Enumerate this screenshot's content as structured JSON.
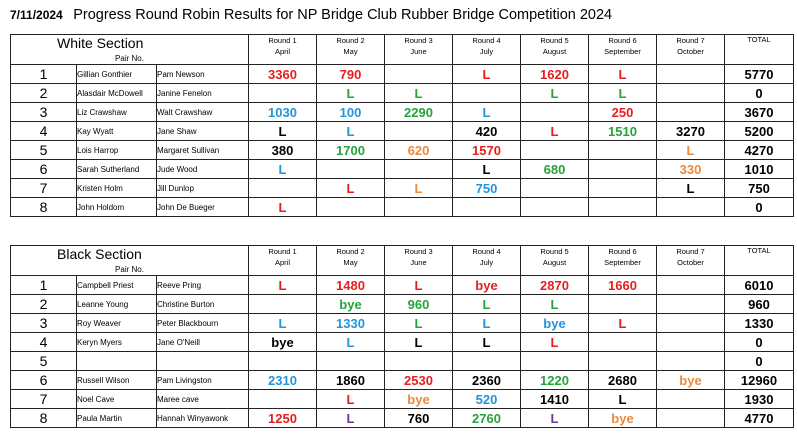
{
  "title": {
    "date": "7/11/2024",
    "text": "Progress Round Robin Results for NP Bridge Club Rubber Bridge Competition 2024"
  },
  "colors": {
    "red": "#e61e1e",
    "green": "#23a43b",
    "blue": "#2196d8",
    "black": "#000000",
    "orange": "#ec8a3a",
    "purple": "#6b3a9a"
  },
  "headers": {
    "pair_no": "Pair No.",
    "total": "TOTAL",
    "rounds": [
      {
        "round": "Round 1",
        "month": "April"
      },
      {
        "round": "Round 2",
        "month": "May"
      },
      {
        "round": "Round 3",
        "month": "June"
      },
      {
        "round": "Round 4",
        "month": "July"
      },
      {
        "round": "Round 5",
        "month": "August"
      },
      {
        "round": "Round 6",
        "month": "September"
      },
      {
        "round": "Round 7",
        "month": "October"
      }
    ]
  },
  "sections": [
    {
      "title": "White Section",
      "rows": [
        {
          "no": "1",
          "p1": "Gillian Gonthier",
          "p2": "Pam Newson",
          "results": [
            {
              "v": "3360",
              "c": "red"
            },
            {
              "v": "790",
              "c": "red"
            },
            {
              "v": "",
              "c": ""
            },
            {
              "v": "L",
              "c": "red"
            },
            {
              "v": "1620",
              "c": "red"
            },
            {
              "v": "L",
              "c": "red"
            },
            {
              "v": "",
              "c": ""
            }
          ],
          "total": "5770"
        },
        {
          "no": "2",
          "p1": "Alasdair McDowell",
          "p2": "Janine Fenelon",
          "results": [
            {
              "v": "",
              "c": ""
            },
            {
              "v": "L",
              "c": "green"
            },
            {
              "v": "L",
              "c": "green"
            },
            {
              "v": "",
              "c": ""
            },
            {
              "v": "L",
              "c": "green"
            },
            {
              "v": "L",
              "c": "green"
            },
            {
              "v": "",
              "c": ""
            }
          ],
          "total": "0"
        },
        {
          "no": "3",
          "p1": "Liz Crawshaw",
          "p2": "Walt Crawshaw",
          "results": [
            {
              "v": "1030",
              "c": "blue"
            },
            {
              "v": "100",
              "c": "blue"
            },
            {
              "v": "2290",
              "c": "green"
            },
            {
              "v": "L",
              "c": "blue"
            },
            {
              "v": "",
              "c": ""
            },
            {
              "v": "250",
              "c": "red"
            },
            {
              "v": "",
              "c": ""
            }
          ],
          "total": "3670"
        },
        {
          "no": "4",
          "p1": "Kay Wyatt",
          "p2": "Jane Shaw",
          "results": [
            {
              "v": "L",
              "c": "black"
            },
            {
              "v": "L",
              "c": "blue"
            },
            {
              "v": "",
              "c": ""
            },
            {
              "v": "420",
              "c": "black"
            },
            {
              "v": "L",
              "c": "red"
            },
            {
              "v": "1510",
              "c": "green"
            },
            {
              "v": "3270",
              "c": "black"
            }
          ],
          "total": "5200"
        },
        {
          "no": "5",
          "p1": "Lois Harrop",
          "p2": "Margaret Sullivan",
          "results": [
            {
              "v": "380",
              "c": "black"
            },
            {
              "v": "1700",
              "c": "green"
            },
            {
              "v": "620",
              "c": "orange"
            },
            {
              "v": "1570",
              "c": "red"
            },
            {
              "v": "",
              "c": ""
            },
            {
              "v": "",
              "c": ""
            },
            {
              "v": "L",
              "c": "orange"
            }
          ],
          "total": "4270"
        },
        {
          "no": "6",
          "p1": "Sarah Sutherland",
          "p2": "Jude Wood",
          "results": [
            {
              "v": "L",
              "c": "blue"
            },
            {
              "v": "",
              "c": ""
            },
            {
              "v": "",
              "c": ""
            },
            {
              "v": "L",
              "c": "black"
            },
            {
              "v": "680",
              "c": "green"
            },
            {
              "v": "",
              "c": ""
            },
            {
              "v": "330",
              "c": "orange"
            }
          ],
          "total": "1010"
        },
        {
          "no": "7",
          "p1": "Kristen Holm",
          "p2": "Jill Dunlop",
          "results": [
            {
              "v": "",
              "c": ""
            },
            {
              "v": "L",
              "c": "red"
            },
            {
              "v": "L",
              "c": "orange"
            },
            {
              "v": "750",
              "c": "blue"
            },
            {
              "v": "",
              "c": ""
            },
            {
              "v": "",
              "c": ""
            },
            {
              "v": "L",
              "c": "black"
            }
          ],
          "total": "750"
        },
        {
          "no": "8",
          "p1": "John Holdom",
          "p2": "John De Bueger",
          "results": [
            {
              "v": "L",
              "c": "red"
            },
            {
              "v": "",
              "c": ""
            },
            {
              "v": "",
              "c": ""
            },
            {
              "v": "",
              "c": ""
            },
            {
              "v": "",
              "c": ""
            },
            {
              "v": "",
              "c": ""
            },
            {
              "v": "",
              "c": ""
            }
          ],
          "total": "0"
        }
      ]
    },
    {
      "title": "Black Section",
      "rows": [
        {
          "no": "1",
          "p1": "Campbell Priest",
          "p2": "Reeve Pring",
          "results": [
            {
              "v": "L",
              "c": "red"
            },
            {
              "v": "1480",
              "c": "red"
            },
            {
              "v": "L",
              "c": "red"
            },
            {
              "v": "bye",
              "c": "red"
            },
            {
              "v": "2870",
              "c": "red"
            },
            {
              "v": "1660",
              "c": "red"
            },
            {
              "v": "",
              "c": ""
            }
          ],
          "total": "6010"
        },
        {
          "no": "2",
          "p1": "Leanne Young",
          "p2": "Christine Burton",
          "results": [
            {
              "v": "",
              "c": ""
            },
            {
              "v": "bye",
              "c": "green"
            },
            {
              "v": "960",
              "c": "green"
            },
            {
              "v": "L",
              "c": "green"
            },
            {
              "v": "L",
              "c": "green"
            },
            {
              "v": "",
              "c": ""
            },
            {
              "v": "",
              "c": ""
            }
          ],
          "total": "960"
        },
        {
          "no": "3",
          "p1": "Roy Weaver",
          "p2": "Peter Blackbourn",
          "results": [
            {
              "v": "L",
              "c": "blue"
            },
            {
              "v": "1330",
              "c": "blue"
            },
            {
              "v": "L",
              "c": "green"
            },
            {
              "v": "L",
              "c": "blue"
            },
            {
              "v": "bye",
              "c": "blue"
            },
            {
              "v": "L",
              "c": "red"
            },
            {
              "v": "",
              "c": ""
            }
          ],
          "total": "1330"
        },
        {
          "no": "4",
          "p1": "Keryn Myers",
          "p2": "Jane O'Neill",
          "results": [
            {
              "v": "bye",
              "c": "black"
            },
            {
              "v": "L",
              "c": "blue"
            },
            {
              "v": "L",
              "c": "black"
            },
            {
              "v": "L",
              "c": "black"
            },
            {
              "v": "L",
              "c": "red"
            },
            {
              "v": "",
              "c": ""
            },
            {
              "v": "",
              "c": ""
            }
          ],
          "total": "0"
        },
        {
          "no": "5",
          "p1": "",
          "p2": "",
          "results": [
            {
              "v": "",
              "c": ""
            },
            {
              "v": "",
              "c": ""
            },
            {
              "v": "",
              "c": ""
            },
            {
              "v": "",
              "c": ""
            },
            {
              "v": "",
              "c": ""
            },
            {
              "v": "",
              "c": ""
            },
            {
              "v": "",
              "c": ""
            }
          ],
          "total": "0"
        },
        {
          "no": "6",
          "p1": "Russell Wilson",
          "p2": "Pam Livingston",
          "results": [
            {
              "v": "2310",
              "c": "blue"
            },
            {
              "v": "1860",
              "c": "black"
            },
            {
              "v": "2530",
              "c": "red"
            },
            {
              "v": "2360",
              "c": "black"
            },
            {
              "v": "1220",
              "c": "green"
            },
            {
              "v": "2680",
              "c": "black"
            },
            {
              "v": "bye",
              "c": "orange"
            }
          ],
          "total": "12960"
        },
        {
          "no": "7",
          "p1": "Noel Cave",
          "p2": "Maree cave",
          "results": [
            {
              "v": "",
              "c": ""
            },
            {
              "v": "L",
              "c": "red"
            },
            {
              "v": "bye",
              "c": "orange"
            },
            {
              "v": "520",
              "c": "blue"
            },
            {
              "v": "1410",
              "c": "black"
            },
            {
              "v": "L",
              "c": "black"
            },
            {
              "v": "",
              "c": ""
            }
          ],
          "total": "1930"
        },
        {
          "no": "8",
          "p1": "Paula Martin",
          "p2": "Hannah Winyawonk",
          "results": [
            {
              "v": "1250",
              "c": "red"
            },
            {
              "v": "L",
              "c": "purple"
            },
            {
              "v": "760",
              "c": "black"
            },
            {
              "v": "2760",
              "c": "green"
            },
            {
              "v": "L",
              "c": "purple"
            },
            {
              "v": "bye",
              "c": "orange"
            },
            {
              "v": "",
              "c": ""
            }
          ],
          "total": "4770"
        }
      ]
    }
  ]
}
